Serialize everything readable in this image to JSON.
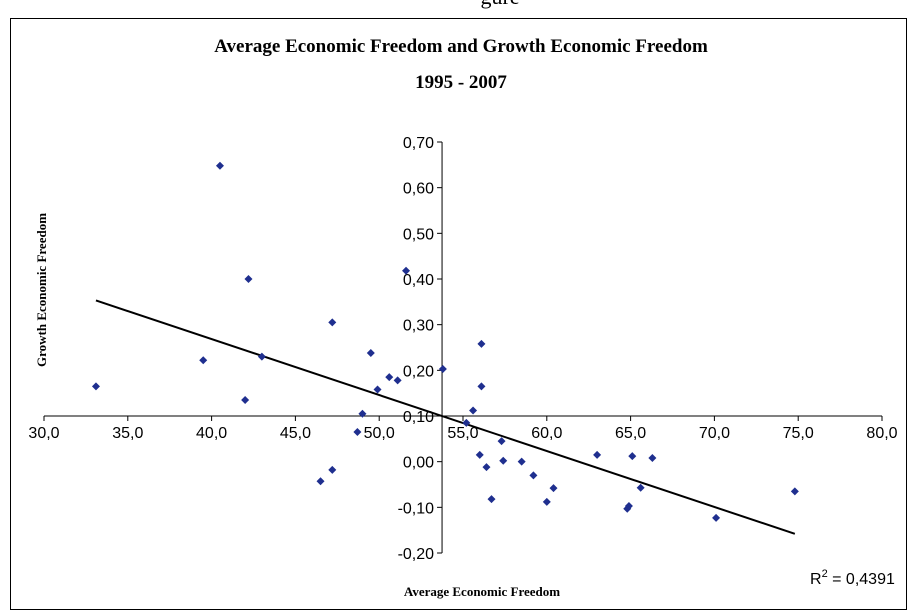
{
  "page": {
    "top_fragment": "gure"
  },
  "chart_data": {
    "type": "scatter",
    "title": "Average Economic Freedom and Growth Economic Freedom",
    "subtitle": "1995 - 2007",
    "xlabel": "Average Economic Freedom",
    "ylabel": "Growth Economic Freedom",
    "xlim": [
      30,
      80
    ],
    "ylim": [
      -0.2,
      0.7
    ],
    "x_ticks": [
      "30,0",
      "35,0",
      "40,0",
      "45,0",
      "50,0",
      "55,0",
      "60,0",
      "65,0",
      "70,0",
      "75,0",
      "80,0"
    ],
    "y_ticks": [
      "-0,20",
      "-0,10",
      "0,00",
      "0,10",
      "0,20",
      "0,30",
      "0,40",
      "0,50",
      "0,60",
      "0,70"
    ],
    "grid": false,
    "marker_color": "#1f2f8f",
    "points": [
      {
        "x": 33.1,
        "y": 0.165
      },
      {
        "x": 39.5,
        "y": 0.222
      },
      {
        "x": 40.5,
        "y": 0.648
      },
      {
        "x": 42.0,
        "y": 0.135
      },
      {
        "x": 42.2,
        "y": 0.4
      },
      {
        "x": 43.0,
        "y": 0.23
      },
      {
        "x": 46.5,
        "y": -0.043
      },
      {
        "x": 47.2,
        "y": 0.305
      },
      {
        "x": 47.2,
        "y": -0.018
      },
      {
        "x": 48.7,
        "y": 0.065
      },
      {
        "x": 49.0,
        "y": 0.105
      },
      {
        "x": 49.5,
        "y": 0.238
      },
      {
        "x": 49.9,
        "y": 0.158
      },
      {
        "x": 50.6,
        "y": 0.185
      },
      {
        "x": 51.1,
        "y": 0.178
      },
      {
        "x": 51.6,
        "y": 0.418
      },
      {
        "x": 53.8,
        "y": 0.203
      },
      {
        "x": 55.2,
        "y": 0.085
      },
      {
        "x": 55.6,
        "y": 0.112
      },
      {
        "x": 56.0,
        "y": 0.015
      },
      {
        "x": 56.1,
        "y": 0.165
      },
      {
        "x": 56.1,
        "y": 0.258
      },
      {
        "x": 56.4,
        "y": -0.012
      },
      {
        "x": 56.7,
        "y": -0.082
      },
      {
        "x": 57.3,
        "y": 0.045
      },
      {
        "x": 57.4,
        "y": 0.002
      },
      {
        "x": 58.5,
        "y": 0.0
      },
      {
        "x": 59.2,
        "y": -0.03
      },
      {
        "x": 60.0,
        "y": -0.088
      },
      {
        "x": 60.4,
        "y": -0.058
      },
      {
        "x": 63.0,
        "y": 0.015
      },
      {
        "x": 64.8,
        "y": -0.103
      },
      {
        "x": 64.9,
        "y": -0.097
      },
      {
        "x": 65.1,
        "y": 0.012
      },
      {
        "x": 65.6,
        "y": -0.057
      },
      {
        "x": 66.3,
        "y": 0.008
      },
      {
        "x": 70.1,
        "y": -0.123
      },
      {
        "x": 74.8,
        "y": -0.065
      }
    ],
    "trendline": {
      "x": [
        33.1,
        74.8
      ],
      "y": [
        0.353,
        -0.158
      ],
      "color": "#000000"
    },
    "annotation": {
      "r2_label": "R",
      "r2_superscript": "2",
      "r2_value": " = 0,4391"
    }
  }
}
